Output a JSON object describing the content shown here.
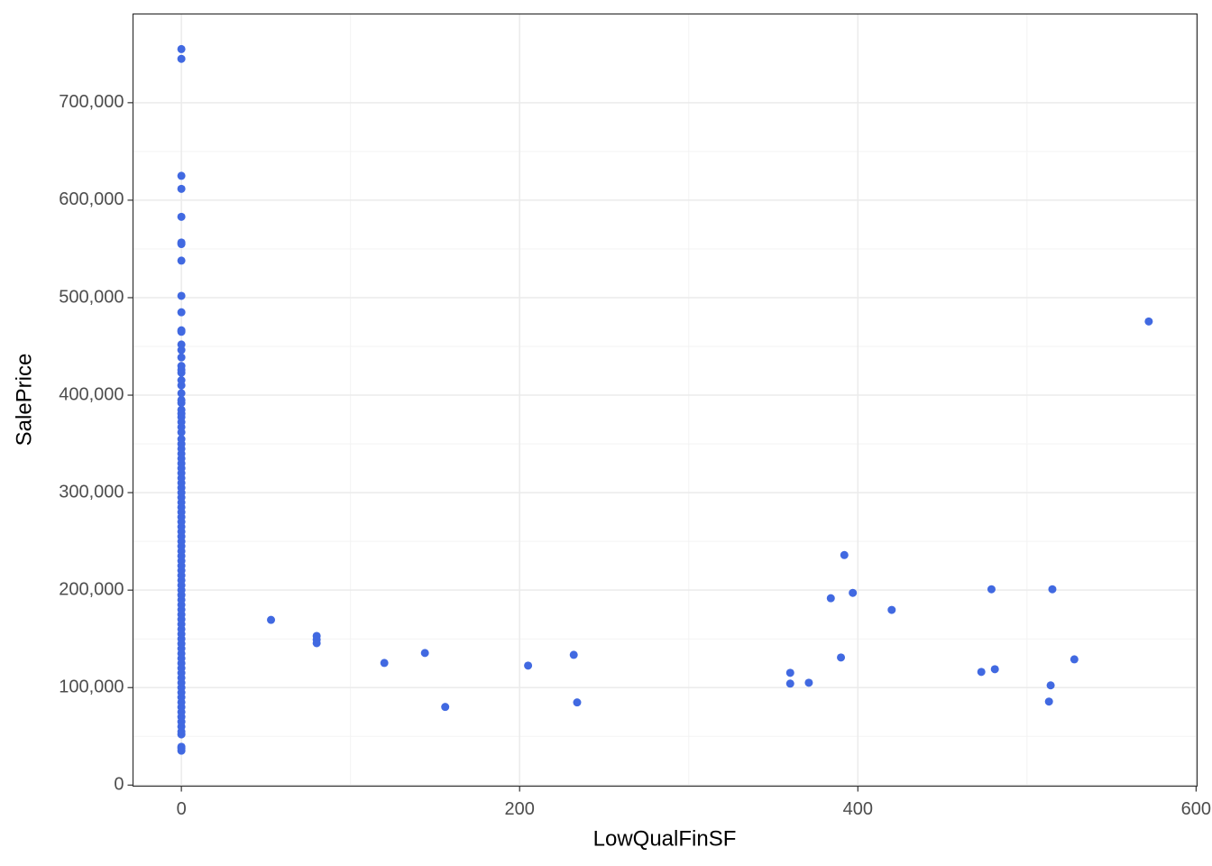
{
  "chart_data": {
    "type": "scatter",
    "x_label": "LowQualFinSF",
    "y_label": "SalePrice",
    "color": "#4169e1",
    "grid": true,
    "xlim": [
      -28.6,
      600.6
    ],
    "xticks": [
      0,
      200,
      400,
      600
    ],
    "ylim": [
      -1105,
      791005
    ],
    "yticks": [
      {
        "value": 0,
        "label": "0"
      },
      {
        "value": 100000,
        "label": "100,000"
      },
      {
        "value": 200000,
        "label": "200,000"
      },
      {
        "value": 300000,
        "label": "300,000"
      },
      {
        "value": 400000,
        "label": "400,000"
      },
      {
        "value": 500000,
        "label": "500,000"
      },
      {
        "value": 600000,
        "label": "600,000"
      },
      {
        "value": 700000,
        "label": "700,000"
      }
    ],
    "x": [
      0,
      0,
      0,
      0,
      0,
      0,
      0,
      0,
      0,
      0,
      0,
      0,
      0,
      0,
      0,
      0,
      0,
      0,
      0,
      0,
      0,
      0,
      0,
      0,
      0,
      0,
      0,
      0,
      0,
      0,
      0,
      0,
      0,
      0,
      0,
      0,
      0,
      0,
      0,
      0,
      0,
      0,
      0,
      0,
      0,
      0,
      0,
      0,
      0,
      0,
      0,
      0,
      0,
      0,
      0,
      0,
      0,
      0,
      0,
      0,
      0,
      0,
      0,
      0,
      0,
      0,
      0,
      0,
      0,
      0,
      0,
      0,
      0,
      0,
      0,
      0,
      0,
      0,
      0,
      0,
      0,
      0,
      0,
      0,
      0,
      0,
      0,
      0,
      0,
      0,
      0,
      0,
      0,
      0,
      53,
      80,
      80,
      80,
      120,
      144,
      156,
      205,
      232,
      234,
      360,
      360,
      371,
      384,
      390,
      392,
      397,
      420,
      473,
      479,
      481,
      513,
      514,
      515,
      528,
      572
    ],
    "values": [
      35311,
      37900,
      39300,
      52000,
      55000,
      60000,
      65000,
      70000,
      75000,
      80000,
      85000,
      90000,
      95000,
      100000,
      105000,
      110000,
      115000,
      120000,
      125000,
      130000,
      135000,
      140000,
      145000,
      150000,
      155000,
      160000,
      165000,
      170000,
      175000,
      180000,
      185000,
      190000,
      195000,
      200000,
      205000,
      210000,
      215000,
      220000,
      225000,
      230000,
      235000,
      240000,
      245000,
      250000,
      255000,
      260000,
      265000,
      270000,
      275000,
      280000,
      285000,
      290000,
      295000,
      300000,
      305000,
      310000,
      315000,
      320000,
      325000,
      330000,
      335000,
      340000,
      345000,
      350000,
      355000,
      361919,
      367294,
      372402,
      377426,
      381000,
      385000,
      392000,
      395000,
      402000,
      410000,
      415298,
      423000,
      426000,
      430000,
      438780,
      446261,
      451950,
      465000,
      466500,
      485000,
      501837,
      538000,
      555000,
      556581,
      582933,
      611657,
      625000,
      745000,
      755000,
      169500,
      153000,
      149300,
      145600,
      125300,
      135500,
      80200,
      122600,
      133600,
      84800,
      115200,
      104100,
      105000,
      191700,
      130900,
      236000,
      197200,
      179700,
      116100,
      200900,
      118900,
      85700,
      102300,
      200900,
      129000,
      475600
    ]
  }
}
